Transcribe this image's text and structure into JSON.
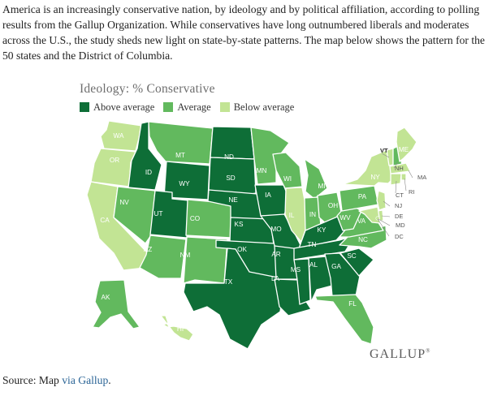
{
  "intro_text": "America is an increasingly conservative nation, by ideology and by political affiliation, according to polling results from the Gallup Organization. While conservatives have long outnumbered liberals and moderates across the U.S., the study sheds new light on state-by-state patterns. The map below shows the pattern for the 50 states and the District of Columbia.",
  "map": {
    "title": "Ideology: % Conservative",
    "legend": [
      {
        "label": "Above average",
        "color": "#0e6e37"
      },
      {
        "label": "Average",
        "color": "#62b95e"
      },
      {
        "label": "Below average",
        "color": "#c2e494"
      }
    ],
    "states": [
      {
        "abbr": "WA",
        "category": "Below average"
      },
      {
        "abbr": "OR",
        "category": "Below average"
      },
      {
        "abbr": "CA",
        "category": "Below average"
      },
      {
        "abbr": "NV",
        "category": "Average"
      },
      {
        "abbr": "ID",
        "category": "Above average"
      },
      {
        "abbr": "MT",
        "category": "Average"
      },
      {
        "abbr": "WY",
        "category": "Above average"
      },
      {
        "abbr": "UT",
        "category": "Above average"
      },
      {
        "abbr": "AZ",
        "category": "Average"
      },
      {
        "abbr": "CO",
        "category": "Average"
      },
      {
        "abbr": "NM",
        "category": "Average"
      },
      {
        "abbr": "ND",
        "category": "Above average"
      },
      {
        "abbr": "SD",
        "category": "Above average"
      },
      {
        "abbr": "NE",
        "category": "Above average"
      },
      {
        "abbr": "KS",
        "category": "Above average"
      },
      {
        "abbr": "OK",
        "category": "Above average"
      },
      {
        "abbr": "TX",
        "category": "Above average"
      },
      {
        "abbr": "MN",
        "category": "Average"
      },
      {
        "abbr": "IA",
        "category": "Above average"
      },
      {
        "abbr": "MO",
        "category": "Above average"
      },
      {
        "abbr": "AR",
        "category": "Above average"
      },
      {
        "abbr": "LA",
        "category": "Above average"
      },
      {
        "abbr": "WI",
        "category": "Average"
      },
      {
        "abbr": "IL",
        "category": "Below average"
      },
      {
        "abbr": "MI",
        "category": "Average"
      },
      {
        "abbr": "IN",
        "category": "Average"
      },
      {
        "abbr": "OH",
        "category": "Average"
      },
      {
        "abbr": "KY",
        "category": "Above average"
      },
      {
        "abbr": "TN",
        "category": "Above average"
      },
      {
        "abbr": "MS",
        "category": "Above average"
      },
      {
        "abbr": "AL",
        "category": "Above average"
      },
      {
        "abbr": "GA",
        "category": "Above average"
      },
      {
        "abbr": "FL",
        "category": "Average"
      },
      {
        "abbr": "SC",
        "category": "Above average"
      },
      {
        "abbr": "NC",
        "category": "Average"
      },
      {
        "abbr": "VA",
        "category": "Average"
      },
      {
        "abbr": "WV",
        "category": "Average"
      },
      {
        "abbr": "PA",
        "category": "Average"
      },
      {
        "abbr": "NY",
        "category": "Below average"
      },
      {
        "abbr": "VT",
        "category": "Below average"
      },
      {
        "abbr": "NH",
        "category": "Average"
      },
      {
        "abbr": "ME",
        "category": "Below average"
      },
      {
        "abbr": "MA",
        "category": "Below average"
      },
      {
        "abbr": "RI",
        "category": "Below average"
      },
      {
        "abbr": "CT",
        "category": "Below average"
      },
      {
        "abbr": "NJ",
        "category": "Below average"
      },
      {
        "abbr": "DE",
        "category": "Below average"
      },
      {
        "abbr": "MD",
        "category": "Below average"
      },
      {
        "abbr": "DC",
        "category": "Below average"
      },
      {
        "abbr": "AK",
        "category": "Average"
      },
      {
        "abbr": "HI",
        "category": "Below average"
      }
    ],
    "logo_text": "GALLUP",
    "logo_mark": "®"
  },
  "source": {
    "prefix": "Source: Map ",
    "link_text": "via Gallup",
    "suffix": "."
  }
}
